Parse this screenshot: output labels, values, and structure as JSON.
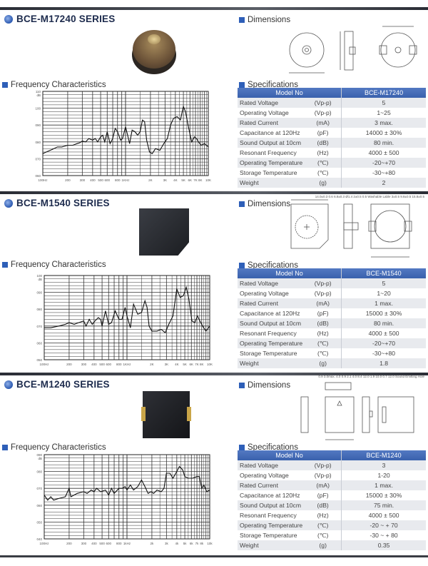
{
  "colors": {
    "accent": "#2e5fb8",
    "table_header": "#3a61ad"
  },
  "labels": {
    "dimensions": "Dimensions",
    "frequency": "Frequency Characteristics",
    "specifications": "Specifications",
    "model_no": "Model No"
  },
  "products": [
    {
      "title": "BCE-M17240 SERIES",
      "model": "BCE-M17240",
      "dimension_labels": [],
      "specs": [
        {
          "name": "Rated Voltage",
          "unit": "(Vp-p)",
          "value": "5"
        },
        {
          "name": "Operating Voltage",
          "unit": "(Vp-p)",
          "value": "1~25"
        },
        {
          "name": "Rated Current",
          "unit": "(mA)",
          "value": "3 max."
        },
        {
          "name": "Capacitance at 120Hz",
          "unit": "(pF)",
          "value": "14000 ± 30%"
        },
        {
          "name": "Sound Output at 10cm",
          "unit": "(dB)",
          "value": "80 min."
        },
        {
          "name": "Resonant Frequency",
          "unit": "(Hz)",
          "value": "4000 ± 500"
        },
        {
          "name": "Operating Temperature",
          "unit": "(℃)",
          "value": "-20~+70"
        },
        {
          "name": "Storage Temperature",
          "unit": "(℃)",
          "value": "-30~+80"
        },
        {
          "name": "Weight",
          "unit": "(g)",
          "value": "2"
        }
      ]
    },
    {
      "title": "BCE-M1540 SERIES",
      "model": "BCE-M1540",
      "dimension_labels": [
        "14.0±0.3",
        "0.6",
        "6.8±0.3",
        "Ø1.4",
        "2±0.5",
        "0.5",
        "Washable Lable",
        "3±0.5",
        "9.8±0.5",
        "15.8±0.5"
      ],
      "specs": [
        {
          "name": "Rated Voltage",
          "unit": "(Vp-p)",
          "value": "5"
        },
        {
          "name": "Operating Voltage",
          "unit": "(Vp-p)",
          "value": "1~20"
        },
        {
          "name": "Rated Current",
          "unit": "(mA)",
          "value": "1 max."
        },
        {
          "name": "Capacitance at 120Hz",
          "unit": "(pF)",
          "value": "15000 ± 30%"
        },
        {
          "name": "Sound Output at 10cm",
          "unit": "(dB)",
          "value": "80 min."
        },
        {
          "name": "Resonant Frequency",
          "unit": "(Hz)",
          "value": "4000 ± 500"
        },
        {
          "name": "Operating Temperature",
          "unit": "(℃)",
          "value": "-20~+70"
        },
        {
          "name": "Storage Temperature",
          "unit": "(℃)",
          "value": "-30~+80"
        },
        {
          "name": "Weight",
          "unit": "(g)",
          "value": "1.8"
        }
      ]
    },
    {
      "title": "BCE-M1240 SERIES",
      "model": "BCE-M1240",
      "dimension_labels": [
        "0.9",
        "3.0max.",
        "4.0",
        "0.9",
        "2.1",
        "4.0",
        "8.4",
        "12.0",
        "1.9",
        "10.0",
        "0.7",
        "12.0",
        "Sound Emitting Hole"
      ],
      "specs": [
        {
          "name": "Rated Voltage",
          "unit": "(Vp-p)",
          "value": "3"
        },
        {
          "name": "Operating Voltage",
          "unit": "(Vp-p)",
          "value": "1-20"
        },
        {
          "name": "Rated Current",
          "unit": "(mA)",
          "value": "1 max."
        },
        {
          "name": "Capacitance at 120Hz",
          "unit": "(pF)",
          "value": "15000 ± 30%"
        },
        {
          "name": "Sound Output at 10cm",
          "unit": "(dB)",
          "value": "75 min."
        },
        {
          "name": "Resonant Frequency",
          "unit": "(Hz)",
          "value": "4000 ± 500"
        },
        {
          "name": "Operating Temperature",
          "unit": "(℃)",
          "value": "-20 ~ + 70"
        },
        {
          "name": "Storage Temperature",
          "unit": "(℃)",
          "value": "-30 ~ + 80"
        },
        {
          "name": "Weight",
          "unit": "(g)",
          "value": "0.35"
        }
      ]
    }
  ],
  "chart_data": [
    {
      "type": "line",
      "xscale": "log",
      "xlim": [
        100,
        10000
      ],
      "ylim": [
        60,
        110
      ],
      "ylabel": "dB",
      "grid": true,
      "yticks": [
        "060",
        "070",
        "080",
        "090",
        "100",
        "110"
      ],
      "xticks": [
        [
          100,
          "100Hz"
        ],
        [
          200,
          "200"
        ],
        [
          300,
          "300"
        ],
        [
          400,
          "400"
        ],
        [
          500,
          "500"
        ],
        [
          600,
          "600"
        ],
        [
          800,
          "800"
        ],
        [
          1000,
          "1KHz"
        ],
        [
          2000,
          "2K"
        ],
        [
          3000,
          "3K"
        ],
        [
          4000,
          "4K"
        ],
        [
          5000,
          "5K"
        ],
        [
          6000,
          "6K"
        ],
        [
          7000,
          "7K"
        ],
        [
          8000,
          "8K"
        ],
        [
          10000,
          "10K"
        ]
      ],
      "x": [
        100,
        110,
        130,
        150,
        170,
        200,
        230,
        260,
        280,
        300,
        330,
        360,
        400,
        430,
        460,
        500,
        530,
        560,
        600,
        650,
        700,
        750,
        800,
        870,
        920,
        1000,
        1060,
        1120,
        1200,
        1300,
        1400,
        1500,
        1600,
        1700,
        1800,
        1950,
        2100,
        2300,
        2600,
        2900,
        3200,
        3500,
        3800,
        4200,
        4600,
        5000,
        5300,
        5800,
        6300,
        6800,
        7200,
        7600,
        8200,
        9000,
        10000
      ],
      "y": [
        73,
        74,
        75.5,
        77,
        77,
        78,
        78,
        79,
        79.5,
        80.5,
        80,
        82,
        81,
        82,
        80,
        83,
        84,
        80,
        86,
        79,
        82,
        88,
        86,
        81,
        82,
        89,
        84,
        79,
        87,
        86,
        84,
        86,
        93,
        92,
        81,
        74,
        73,
        76,
        75,
        79,
        82,
        90,
        94,
        95,
        93,
        101,
        98,
        88,
        80,
        83,
        82,
        80,
        78,
        79,
        77
      ]
    },
    {
      "type": "line",
      "xscale": "log",
      "xlim": [
        100,
        10000
      ],
      "ylim": [
        50,
        100
      ],
      "ylabel": "dB",
      "grid": true,
      "yticks": [
        "050",
        "060",
        "070",
        "080",
        "090",
        "100"
      ],
      "xticks": [
        [
          100,
          "100Hz"
        ],
        [
          200,
          "200"
        ],
        [
          300,
          "300"
        ],
        [
          400,
          "400"
        ],
        [
          500,
          "500"
        ],
        [
          600,
          "600"
        ],
        [
          800,
          "800"
        ],
        [
          1000,
          "1KHz"
        ],
        [
          2000,
          "2K"
        ],
        [
          3000,
          "3K"
        ],
        [
          4000,
          "4K"
        ],
        [
          5000,
          "5K"
        ],
        [
          6000,
          "6K"
        ],
        [
          7000,
          "7K"
        ],
        [
          8000,
          "8K"
        ],
        [
          10000,
          "10K"
        ]
      ],
      "x": [
        100,
        120,
        150,
        180,
        200,
        230,
        260,
        300,
        320,
        350,
        380,
        410,
        450,
        480,
        500,
        550,
        600,
        650,
        720,
        800,
        870,
        950,
        1000,
        1100,
        1200,
        1350,
        1500,
        1650,
        1750,
        1850,
        2000,
        2300,
        2600,
        2900,
        3200,
        3600,
        4000,
        4400,
        4800,
        5200,
        5600,
        6100,
        6600,
        7100,
        7600,
        8200,
        9000,
        10000
      ],
      "y": [
        69,
        69,
        70,
        71,
        72,
        71,
        72,
        73,
        70,
        74,
        71,
        73,
        75,
        74,
        70,
        79,
        71,
        72,
        79,
        74,
        74,
        81,
        76,
        69,
        83,
        77,
        78,
        85,
        81,
        70,
        67,
        67,
        68,
        66,
        71,
        76,
        92,
        87,
        88,
        93,
        86,
        73,
        72,
        76,
        73,
        70,
        67,
        70
      ]
    },
    {
      "type": "line",
      "xscale": "log",
      "xlim": [
        100,
        10000
      ],
      "ylim": [
        40,
        90
      ],
      "ylabel": "dB",
      "grid": true,
      "yticks": [
        "040",
        "050",
        "060",
        "070",
        "080",
        "090"
      ],
      "xticks": [
        [
          100,
          "100Hz"
        ],
        [
          200,
          "200"
        ],
        [
          300,
          "300"
        ],
        [
          400,
          "400"
        ],
        [
          500,
          "500"
        ],
        [
          600,
          "600"
        ],
        [
          800,
          "800"
        ],
        [
          1000,
          "1kHz"
        ],
        [
          2000,
          "2k"
        ],
        [
          3000,
          "3k"
        ],
        [
          4000,
          "4k"
        ],
        [
          5000,
          "5k"
        ],
        [
          6000,
          "6k"
        ],
        [
          7000,
          "7k"
        ],
        [
          8000,
          "8k"
        ],
        [
          10000,
          "10k"
        ]
      ],
      "x": [
        100,
        110,
        120,
        130,
        150,
        180,
        200,
        210,
        250,
        300,
        330,
        370,
        400,
        430,
        480,
        550,
        600,
        650,
        700,
        800,
        870,
        950,
        1000,
        1100,
        1200,
        1350,
        1500,
        1650,
        1800,
        1950,
        2100,
        2300,
        2600,
        2800,
        3000,
        3300,
        3600,
        4000,
        4300,
        4700,
        5000,
        5500,
        6200,
        7000,
        7500,
        8000,
        8500,
        9200,
        10000
      ],
      "y": [
        66,
        63,
        65,
        63,
        64,
        65,
        70,
        65,
        67,
        68,
        67,
        69,
        68,
        70,
        68,
        69,
        66,
        70,
        67,
        70,
        70,
        71,
        69,
        72,
        69,
        71,
        75,
        71,
        67,
        68,
        67,
        69,
        68,
        70,
        79,
        79,
        76,
        80,
        83,
        81,
        77,
        76,
        76,
        77,
        77,
        70,
        72,
        68,
        69
      ]
    }
  ]
}
